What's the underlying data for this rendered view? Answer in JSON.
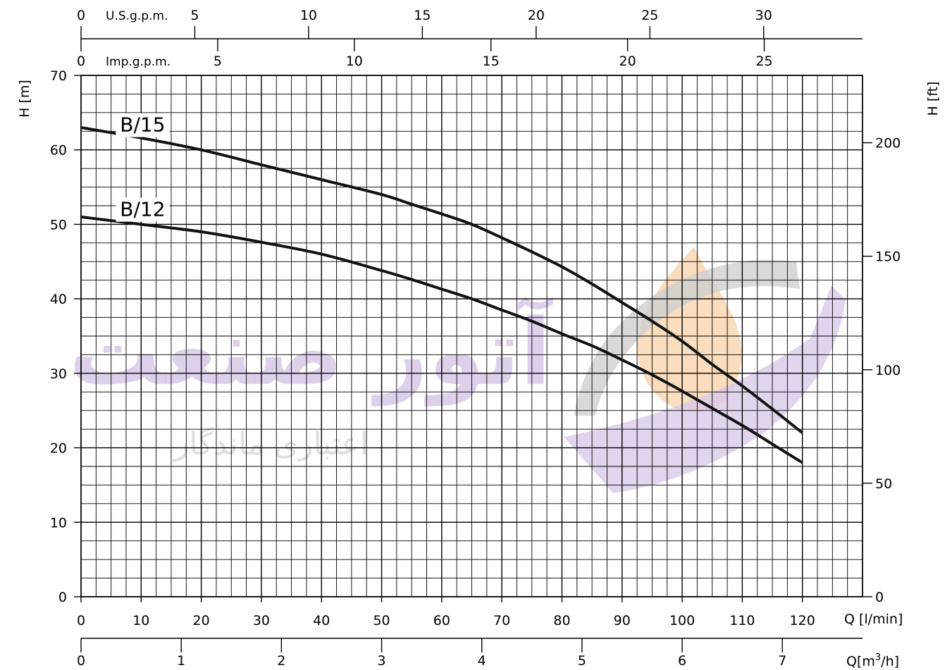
{
  "chart_data": {
    "type": "line",
    "title": "",
    "xlabel": "Q [l/min]",
    "ylabel": "H [m]",
    "xlim": [
      0,
      130
    ],
    "ylim": [
      0,
      70
    ],
    "grid": true,
    "x_ticks": [
      0,
      10,
      20,
      30,
      40,
      50,
      60,
      70,
      80,
      90,
      100,
      110,
      120
    ],
    "y_ticks": [
      0,
      10,
      20,
      30,
      40,
      50,
      60,
      70
    ],
    "series": [
      {
        "name": "B/15",
        "x": [
          0,
          10,
          20,
          30,
          40,
          50,
          55,
          60,
          65,
          70,
          75,
          80,
          85,
          90,
          95,
          100,
          105,
          110,
          115,
          120
        ],
        "y": [
          63,
          61.6,
          60,
          58,
          56,
          54,
          52.7,
          51.4,
          50,
          48.2,
          46.3,
          44.3,
          42,
          39.5,
          37,
          34.3,
          31.2,
          28.3,
          25.2,
          22
        ]
      },
      {
        "name": "B/12",
        "x": [
          0,
          10,
          20,
          30,
          40,
          50,
          55,
          60,
          65,
          70,
          75,
          80,
          85,
          90,
          95,
          100,
          105,
          110,
          115,
          120
        ],
        "y": [
          51,
          50,
          49,
          47.6,
          46,
          43.8,
          42.6,
          41.3,
          40,
          38.5,
          37,
          35.3,
          33.7,
          31.8,
          29.8,
          27.6,
          25.3,
          23,
          20.5,
          18
        ]
      }
    ],
    "axes": {
      "us_gpm": {
        "label": "U.S.g.p.m.",
        "ticks": [
          0,
          5,
          10,
          15,
          20,
          25,
          30
        ],
        "per_lmin": 0.264172
      },
      "imp_gpm": {
        "label": "Imp.g.p.m.",
        "ticks": [
          0,
          5,
          10,
          15,
          20,
          25
        ],
        "per_lmin": 0.219969
      },
      "ft": {
        "label": "H [ft]",
        "ticks": [
          0,
          50,
          100,
          150,
          200
        ],
        "per_m": 3.28084
      },
      "m3h": {
        "label_prefix": "Q[m",
        "label_sup": "3",
        "label_suffix": "/h]",
        "ticks": [
          0,
          1,
          2,
          3,
          4,
          5,
          6,
          7
        ],
        "per_lmin": 0.06
      }
    }
  },
  "watermark": {
    "brand": "آتور صنعت",
    "tagline": "اعتباری ماندگار",
    "colors": {
      "purple": "#d7c8e6",
      "orange": "#f7d2a8",
      "gray": "#d6d6d6"
    }
  }
}
